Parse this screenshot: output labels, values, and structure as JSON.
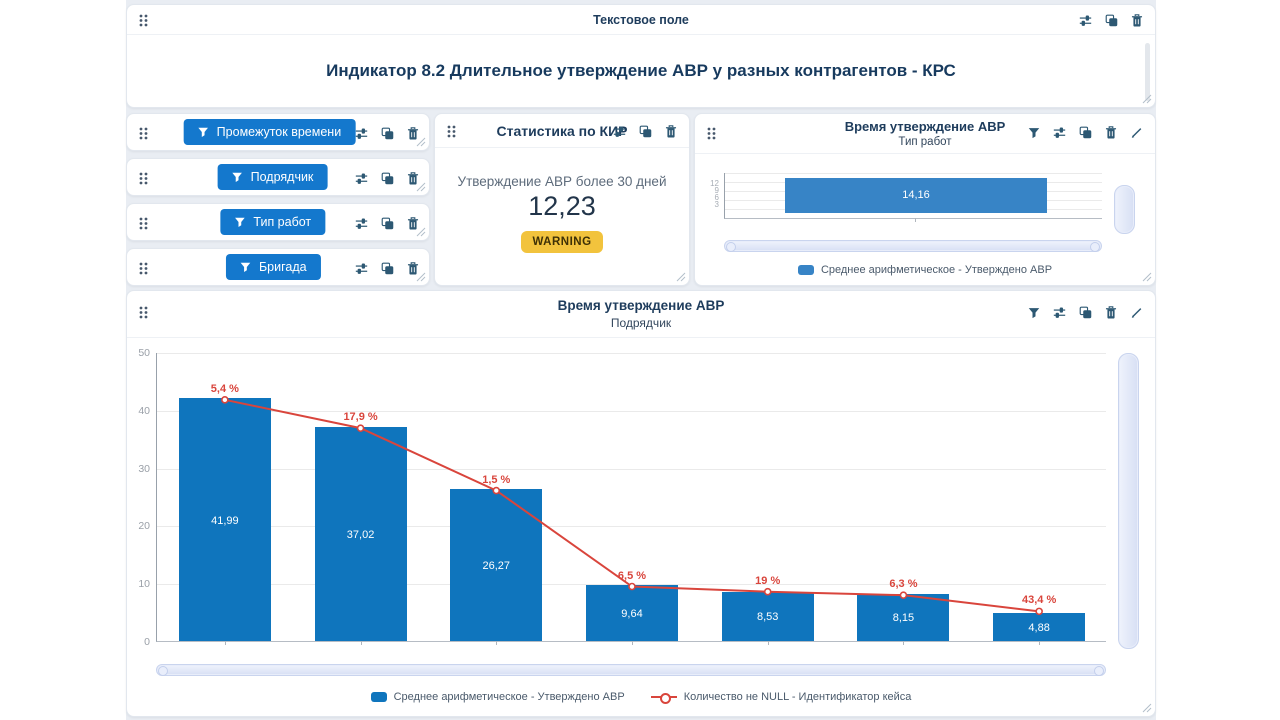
{
  "colors": {
    "accent_blue": "#1478cd",
    "bar_blue": "#0f75bd",
    "small_bar_blue": "#3784c6",
    "line_red": "#d9453c",
    "title_navy": "#1e3c5c",
    "icon_slate": "#2d5873",
    "warning_bg": "#f2c33d"
  },
  "text_panel": {
    "header_title": "Текстовое поле",
    "body_title": "Индикатор 8.2 Длительное утверждение АВР у разных контрагентов - КРС",
    "icons": [
      "settings",
      "duplicate",
      "delete"
    ]
  },
  "filters": {
    "icons": [
      "settings",
      "duplicate",
      "delete"
    ],
    "items": [
      {
        "label": "Промежуток времени"
      },
      {
        "label": "Подрядчик"
      },
      {
        "label": "Тип работ"
      },
      {
        "label": "Бригада"
      }
    ]
  },
  "stat_panel": {
    "header_title": "Статистика по КИР",
    "icons": [
      "settings",
      "duplicate",
      "delete"
    ],
    "label": "Утверждение АВР более 30 дней",
    "value": "12,23",
    "badge": "WARNING"
  },
  "chart_panel_icons": [
    "filter",
    "settings",
    "duplicate",
    "delete",
    "edit"
  ],
  "chart_data": [
    {
      "id": "approval-time-by-contractor",
      "type": "bar",
      "title": "Время утверждение АВР",
      "subtitle": "Подрядчик",
      "categories": [
        "",
        "",
        "",
        "",
        "",
        "",
        ""
      ],
      "x_tick_labels_hidden": true,
      "ylim": [
        0,
        50
      ],
      "y_ticks": [
        0,
        10,
        20,
        30,
        40,
        50
      ],
      "grid": true,
      "legend_position": "bottom",
      "series": [
        {
          "type": "bar",
          "name": "Среднее арифметическое - Утверждено АВР",
          "values": [
            41.99,
            37.02,
            26.27,
            9.64,
            8.53,
            8.15,
            4.88
          ],
          "labels": [
            "41,99",
            "37,02",
            "26,27",
            "9,64",
            "8,53",
            "8,15",
            "4,88"
          ]
        },
        {
          "type": "line",
          "name": "Количество не NULL - Идентификатор кейса",
          "plotted_values": [
            41.9,
            37.0,
            26.2,
            9.6,
            8.7,
            8.1,
            5.3
          ],
          "labels": [
            "5,4 %",
            "17,9 %",
            "1,5 %",
            "6,5 %",
            "19 %",
            "6,3 %",
            "43,4 %"
          ]
        }
      ]
    },
    {
      "id": "approval-time-by-worktype",
      "type": "bar",
      "title": "Время утверждение АВР",
      "subtitle": "Тип работ",
      "categories": [
        ""
      ],
      "y_ticks": [
        "12",
        "9",
        "6",
        "3"
      ],
      "note": "y-axis clipped, single wide bar",
      "legend_position": "bottom",
      "series": [
        {
          "type": "bar",
          "name": "Среднее арифметическое - Утверждено АВР",
          "values": [
            14.16
          ],
          "labels": [
            "14,16"
          ]
        }
      ]
    }
  ]
}
